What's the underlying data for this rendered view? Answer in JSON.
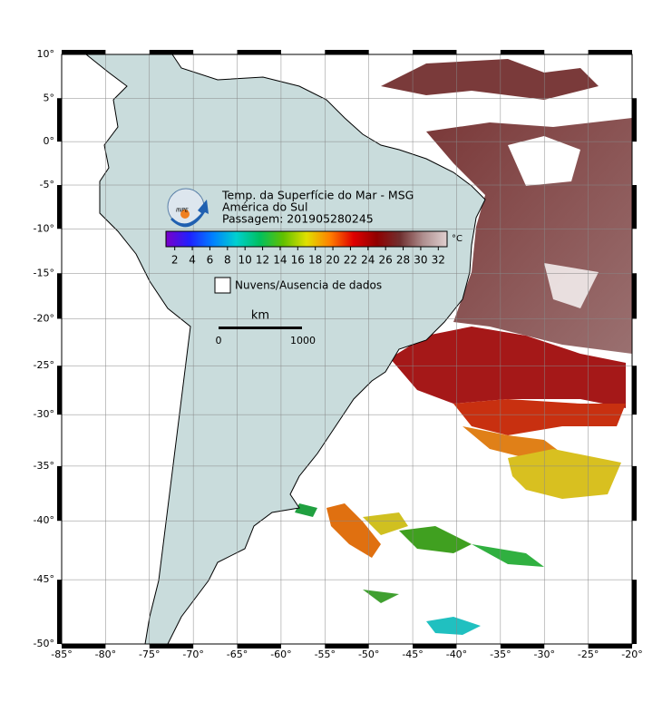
{
  "map": {
    "header": {
      "lines": [
        "Temp. da Superfície do Mar - MSG",
        "América do Sul",
        "Passagem: 201905280245"
      ],
      "logo_text": "INPE"
    },
    "colorbar": {
      "range": [
        1,
        33
      ],
      "ticks": [
        2,
        4,
        6,
        8,
        10,
        12,
        14,
        16,
        18,
        20,
        22,
        24,
        26,
        28,
        30,
        32
      ],
      "unit": "°C",
      "colors": [
        "#7a00c8",
        "#2020ff",
        "#0080ff",
        "#00d0d0",
        "#00c060",
        "#60c000",
        "#e0e000",
        "#ff8000",
        "#e00000",
        "#900000",
        "#703030",
        "#b09090",
        "#e0d0d0"
      ]
    },
    "legend": {
      "label": "Nuvens/Ausencia de dados"
    },
    "scale_bar": {
      "unit": "km",
      "labels": [
        "0",
        "1000"
      ]
    },
    "xlim": [
      -85,
      -20
    ],
    "ylim": [
      -50,
      10
    ],
    "xticks": [
      {
        "value": -85,
        "label": "-85°"
      },
      {
        "value": -80,
        "label": "-80°"
      },
      {
        "value": -75,
        "label": "-75°"
      },
      {
        "value": -70,
        "label": "-70°"
      },
      {
        "value": -65,
        "label": "-65°"
      },
      {
        "value": -60,
        "label": "-60°"
      },
      {
        "value": -55,
        "label": "-55°"
      },
      {
        "value": -50,
        "label": "-50°"
      },
      {
        "value": -45,
        "label": "-45°"
      },
      {
        "value": -40,
        "label": "-40°"
      },
      {
        "value": -35,
        "label": "-35°"
      },
      {
        "value": -30,
        "label": "-30°"
      },
      {
        "value": -25,
        "label": "-25°"
      },
      {
        "value": -20,
        "label": "-20°"
      }
    ],
    "yticks": [
      {
        "value": 10,
        "label": "10°"
      },
      {
        "value": 5,
        "label": "5°"
      },
      {
        "value": 0,
        "label": "0°"
      },
      {
        "value": -5,
        "label": "-5°"
      },
      {
        "value": -10,
        "label": "-10°"
      },
      {
        "value": -15,
        "label": "-15°"
      },
      {
        "value": -20,
        "label": "-20°"
      },
      {
        "value": -25,
        "label": "-25°"
      },
      {
        "value": -30,
        "label": "-30°"
      },
      {
        "value": -35,
        "label": "-35°"
      },
      {
        "value": -40,
        "label": "-40°"
      },
      {
        "value": -45,
        "label": "-45°"
      },
      {
        "value": -50,
        "label": "-50°"
      }
    ]
  }
}
